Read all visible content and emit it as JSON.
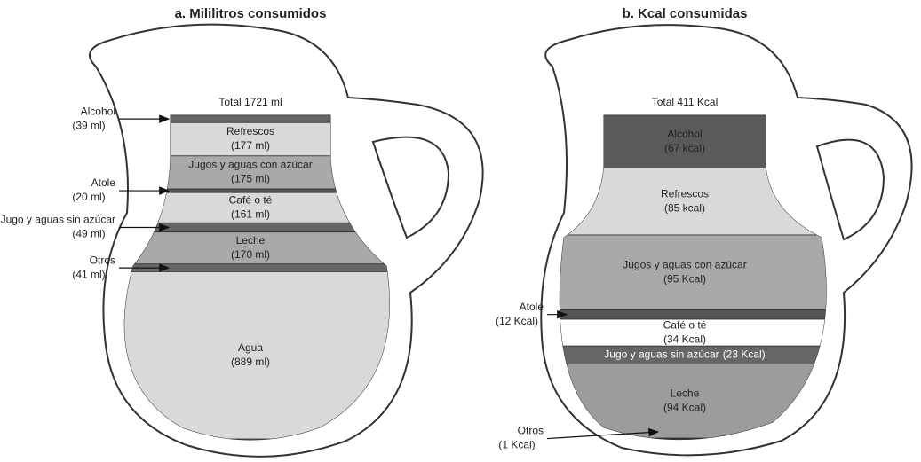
{
  "chart_data": [
    {
      "type": "pitcher",
      "title": "a. Mililitros consumidos",
      "subtitle": "Total 1721 ml",
      "categories": [
        "Alcohol",
        "Refrescos",
        "Jugos y aguas con azúcar",
        "Atole",
        "Café o té",
        "Jugo y aguas sin azúcar",
        "Leche",
        "Otros",
        "Agua"
      ],
      "values": [
        39,
        177,
        175,
        20,
        161,
        49,
        170,
        41,
        889
      ],
      "value_labels": [
        "(39 ml)",
        "(177 ml)",
        "(175 ml)",
        "(20 ml)",
        "(161 ml)",
        "(49 ml)",
        "(170 ml)",
        "(41 ml)",
        "(889 ml)"
      ],
      "colors": [
        "#666666",
        "#d9d9d9",
        "#a9a9a9",
        "#555555",
        "#d9d9d9",
        "#666666",
        "#a9a9a9",
        "#666666",
        "#d9d9d9"
      ]
    },
    {
      "type": "pitcher",
      "title": "b. Kcal consumidas",
      "subtitle": "Total 411 Kcal",
      "categories": [
        "Alcohol",
        "Refrescos",
        "Jugos y aguas con azúcar",
        "Atole",
        "Café o té",
        "Jugo y aguas sin azúcar",
        "Leche",
        "Otros"
      ],
      "values": [
        67,
        85,
        95,
        12,
        34,
        23,
        94,
        1
      ],
      "value_labels": [
        "(67 kcal)",
        "(85 kcal)",
        "(95 Kcal)",
        "(12 Kcal)",
        "(34 Kcal)",
        "(23 Kcal)",
        "(94 Kcal)",
        "(1 Kcal)"
      ],
      "colors": [
        "#5a5a5a",
        "#d9d9d9",
        "#a9a9a9",
        "#555555",
        "#ffffff",
        "#666666",
        "#9c9c9c",
        "#222222"
      ]
    }
  ]
}
